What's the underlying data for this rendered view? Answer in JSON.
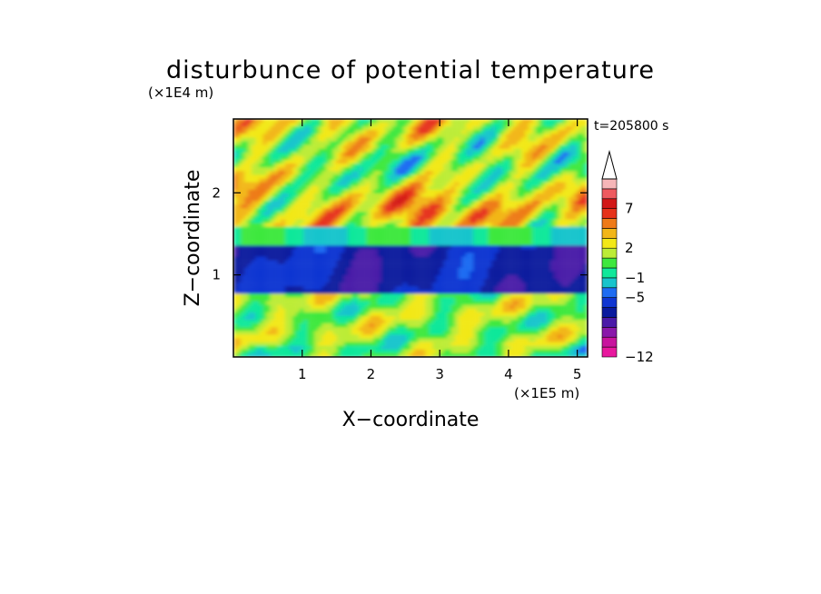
{
  "chart_data": {
    "type": "heatmap",
    "title": "disturbunce of potential temperature",
    "xlabel": "X−coordinate",
    "ylabel": "Z−coordinate",
    "x_unit": "(×1E5 m)",
    "y_unit": "(×1E4 m)",
    "time_label": "t=205800 s",
    "xlim": [
      0,
      5.15
    ],
    "ylim": [
      0,
      2.9
    ],
    "x_ticks": [
      1,
      2,
      3,
      4,
      5
    ],
    "y_ticks": [
      1,
      2
    ],
    "x_tick_labels": [
      "1",
      "2",
      "3",
      "4",
      "5"
    ],
    "y_tick_labels": [
      "1",
      "2"
    ],
    "colorbar": {
      "levels": [
        -12,
        -5,
        -1,
        2,
        7
      ],
      "level_labels": [
        "−12",
        "−5",
        "−1",
        "2",
        "7"
      ],
      "colors": [
        "#e8189e",
        "#c8149e",
        "#8a18aa",
        "#4a1aa8",
        "#0a1a9e",
        "#1036d2",
        "#1f6cf2",
        "#18c4cc",
        "#10e89a",
        "#3ee83e",
        "#bcec36",
        "#f2e818",
        "#f2b618",
        "#ee7a18",
        "#e6321a",
        "#d21818",
        "#ee5a60",
        "#f6b6b8"
      ],
      "extend": "max"
    },
    "field_description": "layered wave field"
  }
}
